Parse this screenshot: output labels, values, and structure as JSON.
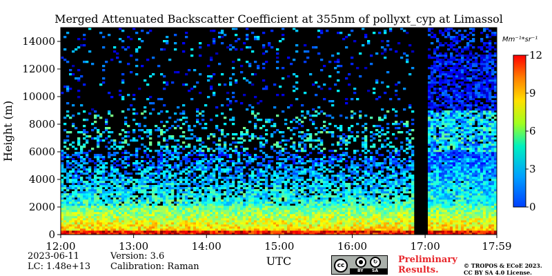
{
  "chart_data": {
    "type": "heatmap",
    "title": "Merged Attenuated Backscatter Coefficient at 355nm of pollyxt_cyp at Limassol",
    "xlabel": "UTC",
    "ylabel": "Height (m)",
    "x_ticks": [
      "12:00",
      "13:00",
      "14:00",
      "15:00",
      "16:00",
      "17:00",
      "17:59"
    ],
    "x_range": [
      "12:00",
      "17:59"
    ],
    "y_ticks": [
      0,
      2000,
      4000,
      6000,
      8000,
      10000,
      12000,
      14000
    ],
    "ylim": [
      0,
      15000
    ],
    "colorbar": {
      "label": "Mm⁻¹*sr⁻¹",
      "range": [
        0,
        12
      ],
      "ticks": [
        0,
        3,
        6,
        9,
        12
      ],
      "colormap": "jet"
    },
    "gap": {
      "start": "16:50",
      "end": "17:00"
    },
    "features": [
      {
        "kind": "near-surface layer",
        "height_range_m": [
          0,
          300
        ],
        "value_range": [
          9,
          12
        ]
      },
      {
        "kind": "boundary layer",
        "height_range_m": [
          300,
          2000
        ],
        "value_range": [
          5,
          8
        ]
      },
      {
        "kind": "aerosol layer",
        "height_range_m": [
          2000,
          6000
        ],
        "value_range": [
          2,
          5
        ]
      }
    ]
  },
  "footer": {
    "date": "2023-06-11",
    "lc": "LC: 1.48e+13",
    "version": "Version: 3.6",
    "calibration": "Calibration: Raman",
    "preliminary_line1": "Preliminary",
    "preliminary_line2": "Results.",
    "copyright_line1": "© TROPOS & ECoE 2023.",
    "copyright_line2": "CC BY SA 4.0 License.",
    "license_badge": {
      "cc": "cc",
      "by": "BY",
      "sa": "SA"
    }
  },
  "colors": {
    "background_no_data": "#000000",
    "colormap_stops": [
      "#0000ff",
      "#00a0ff",
      "#00ff80",
      "#ffff00",
      "#ff8000",
      "#ff0000"
    ]
  }
}
